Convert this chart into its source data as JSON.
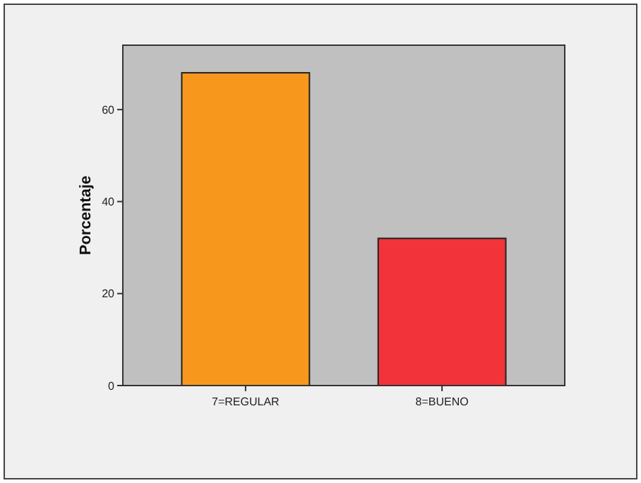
{
  "chart_data": {
    "type": "bar",
    "ylabel": "Porcentaje",
    "categories": [
      "7=REGULAR",
      "8=BUENO"
    ],
    "values": [
      68,
      32
    ],
    "colors": [
      "#f7981d",
      "#f2333a"
    ],
    "ylim": [
      0,
      74
    ],
    "yticks": [
      0,
      20,
      40,
      60
    ],
    "grid": false
  }
}
